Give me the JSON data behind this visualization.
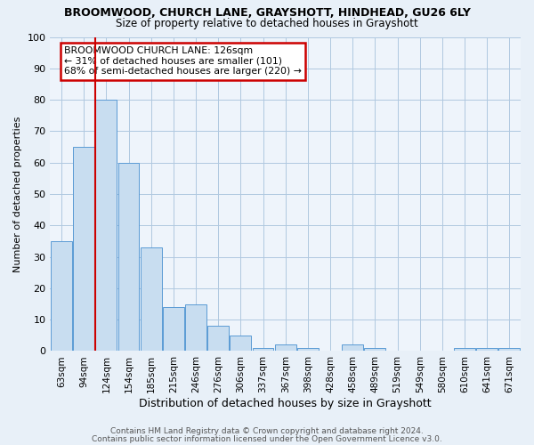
{
  "title1": "BROOMWOOD, CHURCH LANE, GRAYSHOTT, HINDHEAD, GU26 6LY",
  "title2": "Size of property relative to detached houses in Grayshott",
  "xlabel": "Distribution of detached houses by size in Grayshott",
  "ylabel": "Number of detached properties",
  "bar_labels": [
    "63sqm",
    "94sqm",
    "124sqm",
    "154sqm",
    "185sqm",
    "215sqm",
    "246sqm",
    "276sqm",
    "306sqm",
    "337sqm",
    "367sqm",
    "398sqm",
    "428sqm",
    "458sqm",
    "489sqm",
    "519sqm",
    "549sqm",
    "580sqm",
    "610sqm",
    "641sqm",
    "671sqm"
  ],
  "bar_values": [
    35,
    65,
    80,
    60,
    33,
    14,
    15,
    8,
    5,
    1,
    2,
    1,
    0,
    2,
    1,
    0,
    0,
    0,
    1,
    1,
    1
  ],
  "bar_color": "#c8ddf0",
  "bar_edgecolor": "#5b9bd5",
  "vline_x": 1.5,
  "vline_color": "#cc0000",
  "annotation_title": "BROOMWOOD CHURCH LANE: 126sqm",
  "annotation_line1": "← 31% of detached houses are smaller (101)",
  "annotation_line2": "68% of semi-detached houses are larger (220) →",
  "annotation_box_edgecolor": "#cc0000",
  "ylim": [
    0,
    100
  ],
  "yticks": [
    0,
    10,
    20,
    30,
    40,
    50,
    60,
    70,
    80,
    90,
    100
  ],
  "footnote1": "Contains HM Land Registry data © Crown copyright and database right 2024.",
  "footnote2": "Contains public sector information licensed under the Open Government Licence v3.0.",
  "bg_color": "#e8f0f8",
  "plot_bg_color": "#eef4fb",
  "grid_color": "#b0c8e0"
}
